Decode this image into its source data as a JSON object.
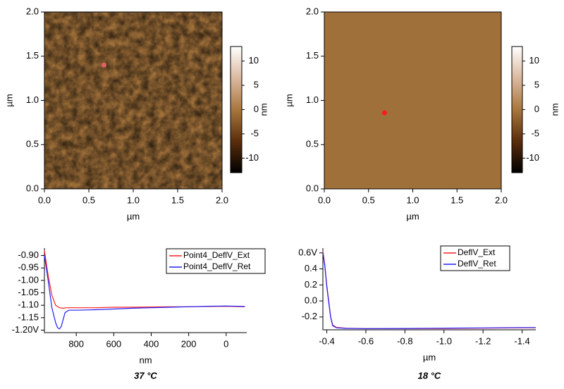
{
  "chart_data": [
    {
      "type": "image",
      "xlabel": "µm",
      "ylabel": "µm",
      "xlim": [
        0,
        2
      ],
      "ylim": [
        0,
        2
      ],
      "xticks": [
        {
          "value": 0,
          "label": "0.0"
        },
        {
          "value": 0.5,
          "label": "0.5"
        },
        {
          "value": 1,
          "label": "1.0"
        },
        {
          "value": 1.5,
          "label": "1.5"
        },
        {
          "value": 2,
          "label": "2.0"
        }
      ],
      "yticks": [
        {
          "value": 0,
          "label": "0.0"
        },
        {
          "value": 0.5,
          "label": "0.5"
        },
        {
          "value": 1,
          "label": "1.0"
        },
        {
          "value": 1.5,
          "label": "1.5"
        },
        {
          "value": 2,
          "label": "2.0"
        }
      ],
      "points": {
        "x": [
          0.67
        ],
        "y": [
          1.4
        ],
        "color": "#e06060"
      },
      "colorbar": {
        "label": "nm",
        "lim": [
          -13,
          13
        ],
        "ticks": [
          -10,
          -5,
          0,
          5,
          10
        ]
      }
    },
    {
      "type": "image",
      "xlabel": "µm",
      "ylabel": "µm",
      "xlim": [
        0,
        2
      ],
      "ylim": [
        0,
        2
      ],
      "xticks": [
        {
          "value": 0,
          "label": "0.0"
        },
        {
          "value": 0.5,
          "label": "0.5"
        },
        {
          "value": 1,
          "label": "1.0"
        },
        {
          "value": 1.5,
          "label": "1.5"
        },
        {
          "value": 2,
          "label": "2.0"
        }
      ],
      "yticks": [
        {
          "value": 0,
          "label": "0.0"
        },
        {
          "value": 0.5,
          "label": "0.5"
        },
        {
          "value": 1,
          "label": "1.0"
        },
        {
          "value": 1.5,
          "label": "1.5"
        },
        {
          "value": 2,
          "label": "2.0"
        }
      ],
      "points": {
        "x": [
          0.68
        ],
        "y": [
          0.86
        ],
        "color": "#ff1a1a"
      },
      "colorbar": {
        "label": "nm",
        "lim": [
          -13,
          13
        ],
        "ticks": [
          -10,
          -5,
          0,
          5,
          10
        ]
      }
    },
    {
      "type": "line",
      "xlabel": "nm",
      "caption": "37 °C",
      "xlim": [
        970,
        -110
      ],
      "ylim": [
        -1.21,
        -0.87
      ],
      "xticks": [
        800,
        600,
        400,
        200,
        0
      ],
      "yticks": [
        {
          "value": -0.9,
          "label": "-0.90"
        },
        {
          "value": -0.95,
          "label": "-0.95"
        },
        {
          "value": -1.0,
          "label": "-1.00"
        },
        {
          "value": -1.05,
          "label": "-1.05"
        },
        {
          "value": -1.1,
          "label": "-1.10"
        },
        {
          "value": -1.15,
          "label": "-1.15"
        },
        {
          "value": -1.2,
          "label": "-1.20V"
        }
      ],
      "series": [
        {
          "name": "Point4_DeflV_Ext",
          "color": "#ff2020",
          "x": [
            970,
            950,
            930,
            910,
            890,
            870,
            850,
            800,
            700,
            600,
            500,
            400,
            300,
            200,
            100,
            0,
            -100
          ],
          "values": [
            -0.88,
            -0.98,
            -1.06,
            -1.1,
            -1.11,
            -1.112,
            -1.11,
            -1.11,
            -1.11,
            -1.108,
            -1.108,
            -1.107,
            -1.106,
            -1.106,
            -1.105,
            -1.104,
            -1.106
          ]
        },
        {
          "name": "Point4_DeflV_Ret",
          "color": "#2020ff",
          "x": [
            970,
            950,
            930,
            910,
            900,
            890,
            880,
            860,
            840,
            800,
            700,
            600,
            500,
            400,
            300,
            200,
            100,
            0,
            -100
          ],
          "values": [
            -0.9,
            -1.0,
            -1.11,
            -1.17,
            -1.19,
            -1.195,
            -1.185,
            -1.13,
            -1.12,
            -1.12,
            -1.118,
            -1.115,
            -1.112,
            -1.11,
            -1.108,
            -1.106,
            -1.104,
            -1.103,
            -1.105
          ]
        }
      ]
    },
    {
      "type": "line",
      "xlabel": "µm",
      "caption": "18 °C",
      "xlim": [
        -0.38,
        -1.47
      ],
      "ylim": [
        -0.36,
        0.66
      ],
      "xticks": [
        -0.4,
        -0.6,
        -0.8,
        {
          "value": -1,
          "label": "-1.0"
        },
        -1.2,
        -1.4
      ],
      "yticks": [
        {
          "value": 0.6,
          "label": "0.6V"
        },
        0.4,
        0.2,
        {
          "value": 0,
          "label": "0.0"
        },
        -0.2
      ],
      "series": [
        {
          "name": "DeflV_Ext",
          "color": "#ff2020",
          "x": [
            -0.38,
            -0.39,
            -0.4,
            -0.41,
            -0.42,
            -0.43,
            -0.45,
            -0.5,
            -0.6,
            -0.8,
            -1.0,
            -1.2,
            -1.4,
            -1.47
          ],
          "values": [
            0.62,
            0.45,
            0.2,
            0.0,
            -0.2,
            -0.3,
            -0.33,
            -0.34,
            -0.345,
            -0.345,
            -0.343,
            -0.34,
            -0.335,
            -0.335
          ]
        },
        {
          "name": "DeflV_Ret",
          "color": "#2020ff",
          "x": [
            -0.38,
            -0.39,
            -0.4,
            -0.41,
            -0.42,
            -0.43,
            -0.45,
            -0.5,
            -0.6,
            -0.8,
            -1.0,
            -1.2,
            -1.4,
            -1.47
          ],
          "values": [
            0.6,
            0.43,
            0.18,
            -0.02,
            -0.21,
            -0.31,
            -0.335,
            -0.342,
            -0.345,
            -0.343,
            -0.34,
            -0.336,
            -0.332,
            -0.332
          ]
        }
      ]
    }
  ]
}
